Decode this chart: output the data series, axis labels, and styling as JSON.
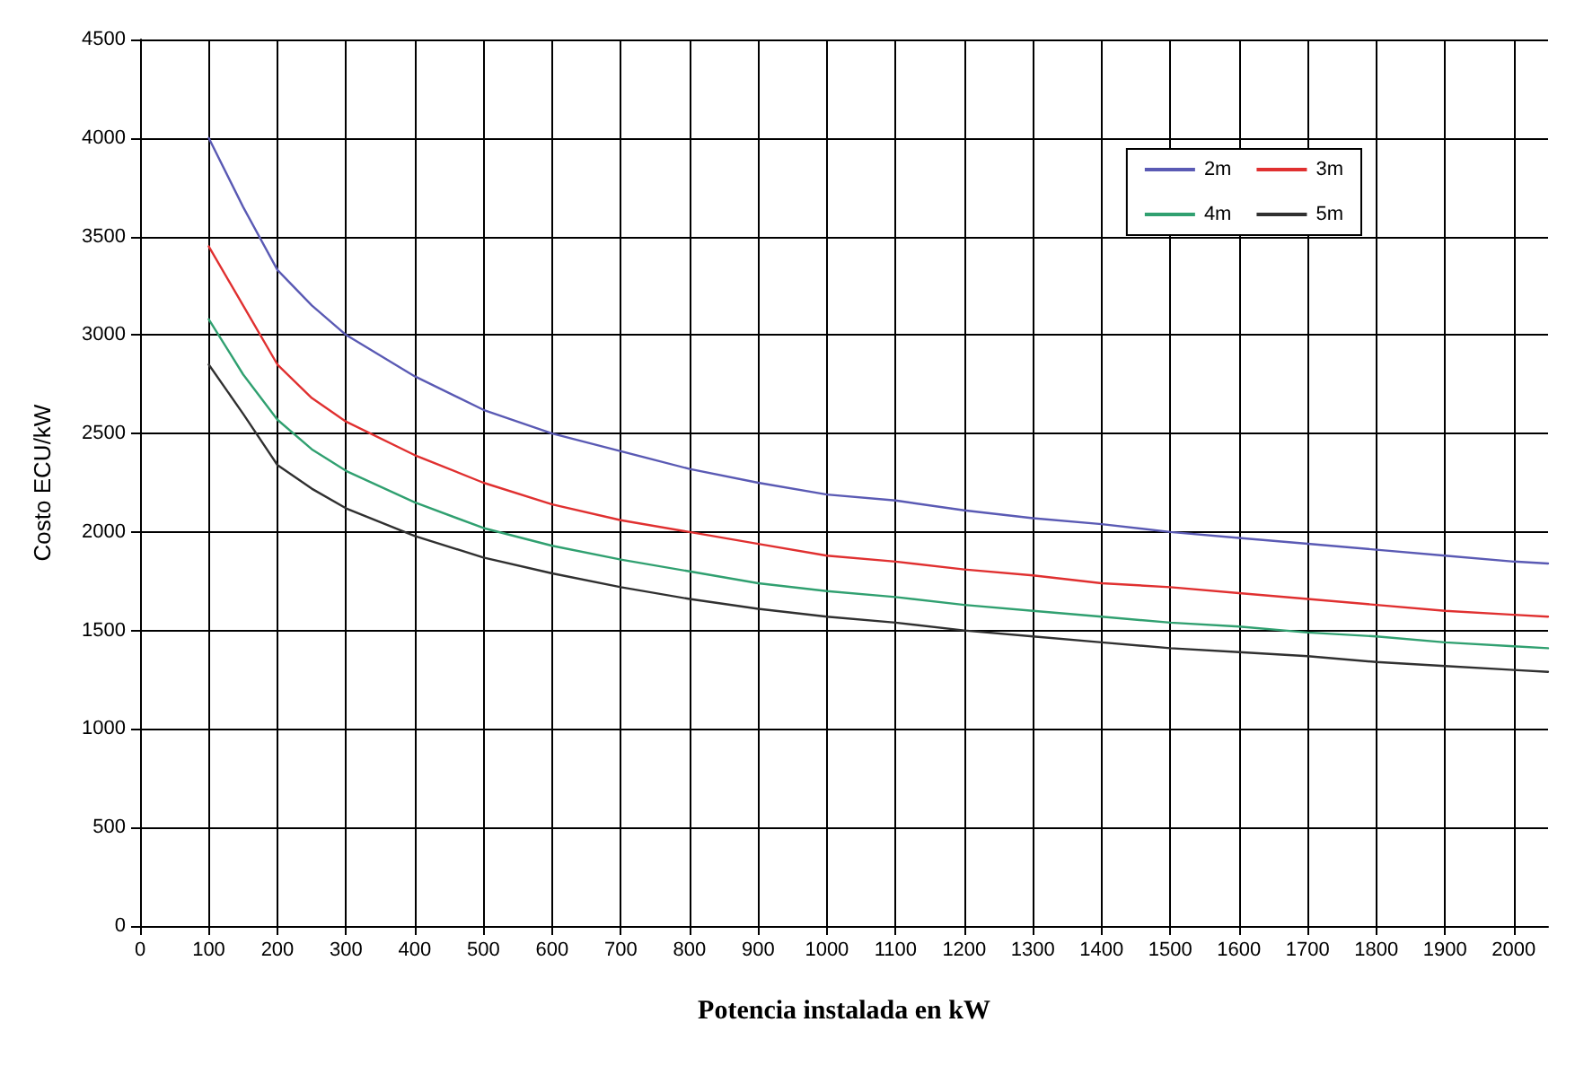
{
  "chart_data": {
    "type": "line",
    "xlabel": "Potencia instalada en kW",
    "ylabel": "Costo ECU/kW",
    "x": [
      100,
      150,
      200,
      250,
      300,
      400,
      500,
      600,
      700,
      800,
      900,
      1000,
      1100,
      1200,
      1300,
      1400,
      1500,
      1600,
      1700,
      1800,
      1900,
      2000,
      2050
    ],
    "series": [
      {
        "name": "2m",
        "color": "#5a5ab4",
        "values": [
          4000,
          3650,
          3330,
          3150,
          3000,
          2790,
          2620,
          2500,
          2410,
          2320,
          2250,
          2190,
          2160,
          2110,
          2070,
          2040,
          2000,
          1970,
          1940,
          1910,
          1880,
          1850,
          1840
        ]
      },
      {
        "name": "3m",
        "color": "#e03030",
        "values": [
          3450,
          3150,
          2850,
          2680,
          2560,
          2390,
          2250,
          2140,
          2060,
          2000,
          1940,
          1880,
          1850,
          1810,
          1780,
          1740,
          1720,
          1690,
          1660,
          1630,
          1600,
          1580,
          1570
        ]
      },
      {
        "name": "4m",
        "color": "#30a070",
        "values": [
          3080,
          2800,
          2570,
          2420,
          2310,
          2150,
          2020,
          1930,
          1860,
          1800,
          1740,
          1700,
          1670,
          1630,
          1600,
          1570,
          1540,
          1520,
          1490,
          1470,
          1440,
          1420,
          1410
        ]
      },
      {
        "name": "5m",
        "color": "#303030",
        "values": [
          2850,
          2600,
          2340,
          2220,
          2120,
          1980,
          1870,
          1790,
          1720,
          1660,
          1610,
          1570,
          1540,
          1500,
          1470,
          1440,
          1410,
          1390,
          1370,
          1340,
          1320,
          1300,
          1290
        ]
      }
    ],
    "xlim": [
      0,
      2050
    ],
    "xticks": [
      0,
      100,
      200,
      300,
      400,
      500,
      600,
      700,
      800,
      900,
      1000,
      1100,
      1200,
      1300,
      1400,
      1500,
      1600,
      1700,
      1800,
      1900,
      2000
    ],
    "ylim": [
      0,
      4500
    ],
    "yticks": [
      0,
      500,
      1000,
      1500,
      2000,
      2500,
      3000,
      3500,
      4000,
      4500
    ],
    "grid": true,
    "legend": "top right",
    "marker": "none",
    "line_style": "solid"
  }
}
